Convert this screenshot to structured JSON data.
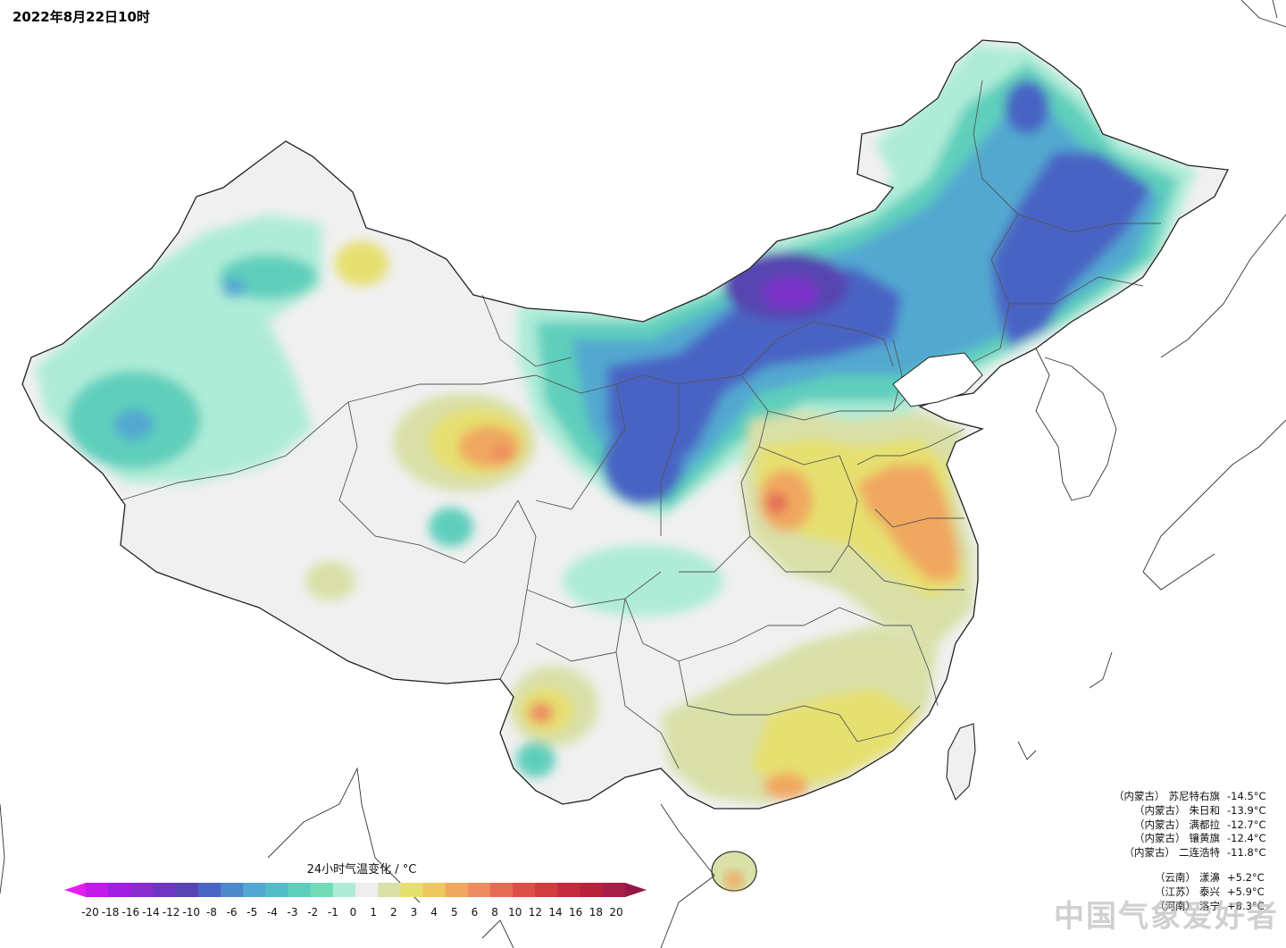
{
  "header": {
    "timestamp": "2022年8月22日10时"
  },
  "legend": {
    "title": "24小时气温变化 / °C",
    "colors": [
      "#e41ef0",
      "#c21ae8",
      "#a01fe0",
      "#8a2ccf",
      "#6e34c2",
      "#5744b0",
      "#4a64c4",
      "#4c88cc",
      "#52a8d0",
      "#53bcc8",
      "#5ecfbc",
      "#72dcb6",
      "#aeecd8",
      "#eeeeee",
      "#d9e0a8",
      "#e6e070",
      "#f0c860",
      "#f0a860",
      "#ec8c60",
      "#e46c54",
      "#dc5048",
      "#d03c40",
      "#c62a3e",
      "#b8223e",
      "#a81c48",
      "#941648"
    ],
    "ticks": [
      "-20",
      "-18",
      "-16",
      "-14",
      "-12",
      "-10",
      "-8",
      "-6",
      "-5",
      "-4",
      "-3",
      "-2",
      "-1",
      "0",
      "1",
      "2",
      "3",
      "4",
      "5",
      "6",
      "8",
      "10",
      "12",
      "14",
      "16",
      "18",
      "20"
    ]
  },
  "colors": {
    "neutral": "#f0f0f0",
    "mint": "#aeecd8",
    "teal": "#5ecfbc",
    "sky": "#52a8d0",
    "blue": "#4a64c4",
    "indigo": "#5744b0",
    "purple": "#7a30c8",
    "khaki": "#d9e0a8",
    "yellow": "#e6e070",
    "orange": "#f0a860",
    "salmon": "#ec8c60",
    "red": "#e46c54"
  },
  "stations_cold": [
    {
      "province": "（内蒙古）",
      "name": "苏尼特右旗",
      "value": "-14.5°C"
    },
    {
      "province": "（内蒙古）",
      "name": "朱日和",
      "value": "-13.9°C"
    },
    {
      "province": "（内蒙古）",
      "name": "满都拉",
      "value": "-12.7°C"
    },
    {
      "province": "（内蒙古）",
      "name": "镶黄旗",
      "value": "-12.4°C"
    },
    {
      "province": "（内蒙古）",
      "name": "二连浩特",
      "value": "-11.8°C"
    }
  ],
  "stations_warm": [
    {
      "province": "（云南）",
      "name": "漾濞",
      "value": "+5.2°C"
    },
    {
      "province": "（江苏）",
      "name": "泰兴",
      "value": "+5.9°C"
    },
    {
      "province": "",
      "name": "",
      "value": ""
    },
    {
      "province": "",
      "name": "",
      "value": ""
    },
    {
      "province": "（河南）",
      "name": "洛宁",
      "value": "+8.3°C"
    }
  ],
  "watermark": "中国气象爱好者"
}
